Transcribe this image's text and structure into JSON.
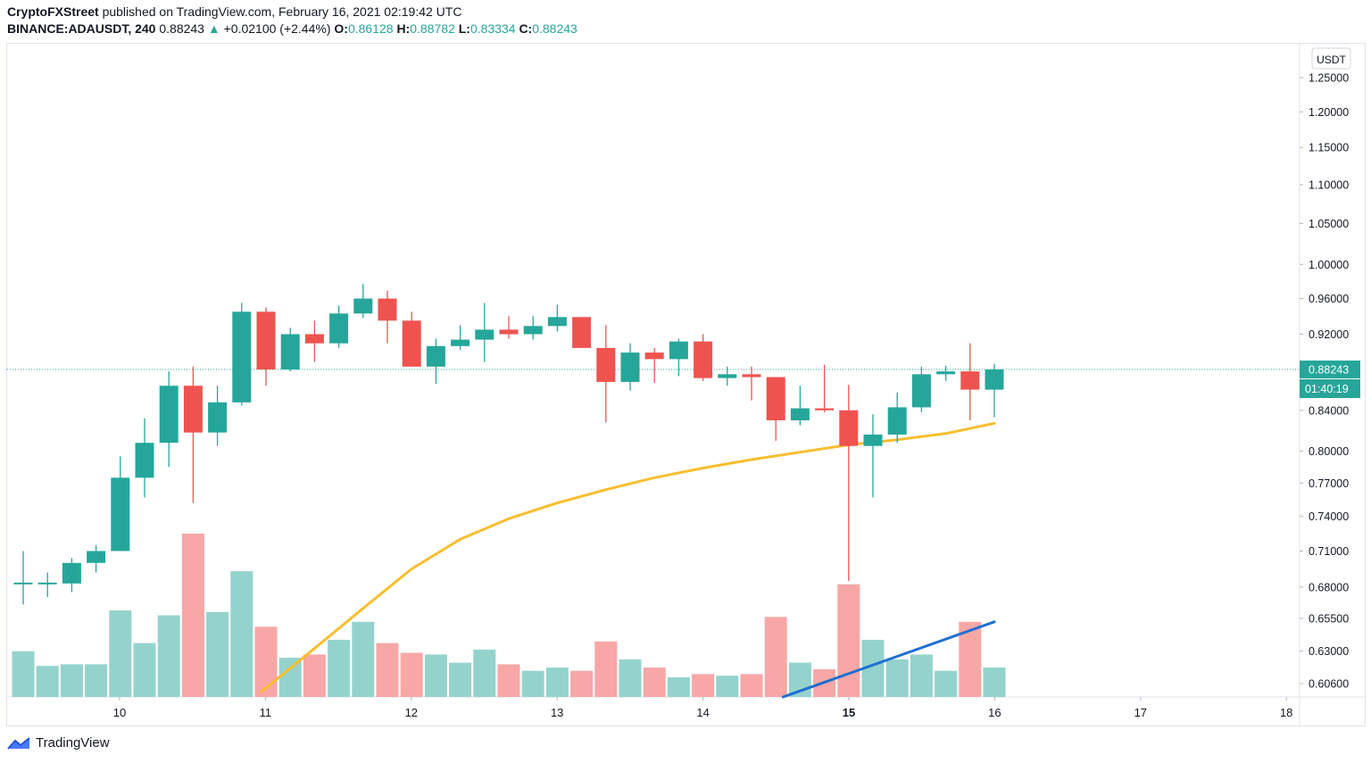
{
  "header": {
    "publisher": "CryptoFXStreet",
    "published_text": "published on TradingView.com, February 16, 2021 02:19:42 UTC",
    "symbol": "BINANCE:ADAUSDT, 240",
    "last": "0.88243",
    "change_arrow": "▲",
    "change": "+0.02100 (+2.44%)",
    "open_label": "O:",
    "open": "0.86128",
    "high_label": "H:",
    "high": "0.88782",
    "low_label": "L:",
    "low": "0.83334",
    "close_label": "C:",
    "close": "0.88243"
  },
  "footer": {
    "brand": "TradingView",
    "logo_icon": "tradingview-logo-icon"
  },
  "colors": {
    "up": "#26a69a",
    "down": "#ef5350",
    "vol_up": "#94d3cc",
    "vol_down": "#f6a7a6",
    "ma": "#f7be2f",
    "trend": "#1f6fd1"
  },
  "chart_data": {
    "type": "candlestick",
    "currency_label": "USDT",
    "y_scale": "log",
    "y_ticks": [
      "1.25000",
      "1.20000",
      "1.15000",
      "1.10000",
      "1.05000",
      "1.00000",
      "0.96000",
      "0.92000",
      "0.84000",
      "0.80000",
      "0.77000",
      "0.74000",
      "0.71000",
      "0.68000",
      "0.65500",
      "0.63000",
      "0.60600"
    ],
    "x_ticks": [
      "10",
      "11",
      "12",
      "13",
      "14",
      "15",
      "16",
      "17",
      "18"
    ],
    "current_price_label": "0.88243",
    "countdown_label": "01:40:19",
    "candles": [
      {
        "o": 0.683,
        "h": 0.71,
        "l": 0.666,
        "c": 0.683
      },
      {
        "o": 0.683,
        "h": 0.692,
        "l": 0.672,
        "c": 0.683
      },
      {
        "o": 0.683,
        "h": 0.704,
        "l": 0.676,
        "c": 0.7
      },
      {
        "o": 0.7,
        "h": 0.715,
        "l": 0.692,
        "c": 0.71
      },
      {
        "o": 0.71,
        "h": 0.795,
        "l": 0.71,
        "c": 0.775
      },
      {
        "o": 0.775,
        "h": 0.832,
        "l": 0.757,
        "c": 0.808
      },
      {
        "o": 0.808,
        "h": 0.88,
        "l": 0.785,
        "c": 0.865
      },
      {
        "o": 0.865,
        "h": 0.885,
        "l": 0.752,
        "c": 0.818
      },
      {
        "o": 0.818,
        "h": 0.865,
        "l": 0.805,
        "c": 0.848
      },
      {
        "o": 0.848,
        "h": 0.955,
        "l": 0.845,
        "c": 0.945
      },
      {
        "o": 0.945,
        "h": 0.95,
        "l": 0.865,
        "c": 0.882
      },
      {
        "o": 0.882,
        "h": 0.927,
        "l": 0.88,
        "c": 0.92
      },
      {
        "o": 0.92,
        "h": 0.935,
        "l": 0.89,
        "c": 0.91
      },
      {
        "o": 0.91,
        "h": 0.952,
        "l": 0.905,
        "c": 0.943
      },
      {
        "o": 0.943,
        "h": 0.977,
        "l": 0.938,
        "c": 0.96
      },
      {
        "o": 0.96,
        "h": 0.969,
        "l": 0.91,
        "c": 0.935
      },
      {
        "o": 0.935,
        "h": 0.945,
        "l": 0.885,
        "c": 0.885
      },
      {
        "o": 0.885,
        "h": 0.915,
        "l": 0.867,
        "c": 0.907
      },
      {
        "o": 0.907,
        "h": 0.93,
        "l": 0.903,
        "c": 0.914
      },
      {
        "o": 0.914,
        "h": 0.955,
        "l": 0.89,
        "c": 0.925
      },
      {
        "o": 0.925,
        "h": 0.94,
        "l": 0.915,
        "c": 0.92
      },
      {
        "o": 0.92,
        "h": 0.94,
        "l": 0.914,
        "c": 0.929
      },
      {
        "o": 0.929,
        "h": 0.953,
        "l": 0.923,
        "c": 0.939
      },
      {
        "o": 0.939,
        "h": 0.939,
        "l": 0.905,
        "c": 0.905
      },
      {
        "o": 0.905,
        "h": 0.93,
        "l": 0.828,
        "c": 0.869
      },
      {
        "o": 0.869,
        "h": 0.91,
        "l": 0.86,
        "c": 0.9
      },
      {
        "o": 0.9,
        "h": 0.905,
        "l": 0.868,
        "c": 0.893
      },
      {
        "o": 0.893,
        "h": 0.915,
        "l": 0.875,
        "c": 0.912
      },
      {
        "o": 0.912,
        "h": 0.92,
        "l": 0.87,
        "c": 0.873
      },
      {
        "o": 0.873,
        "h": 0.885,
        "l": 0.865,
        "c": 0.877
      },
      {
        "o": 0.877,
        "h": 0.885,
        "l": 0.85,
        "c": 0.874
      },
      {
        "o": 0.874,
        "h": 0.874,
        "l": 0.81,
        "c": 0.83
      },
      {
        "o": 0.83,
        "h": 0.865,
        "l": 0.825,
        "c": 0.842
      },
      {
        "o": 0.842,
        "h": 0.887,
        "l": 0.838,
        "c": 0.84
      },
      {
        "o": 0.84,
        "h": 0.866,
        "l": 0.685,
        "c": 0.805
      },
      {
        "o": 0.805,
        "h": 0.836,
        "l": 0.757,
        "c": 0.816
      },
      {
        "o": 0.816,
        "h": 0.858,
        "l": 0.808,
        "c": 0.843
      },
      {
        "o": 0.843,
        "h": 0.885,
        "l": 0.838,
        "c": 0.877
      },
      {
        "o": 0.877,
        "h": 0.886,
        "l": 0.87,
        "c": 0.88
      },
      {
        "o": 0.88,
        "h": 0.91,
        "l": 0.83,
        "c": 0.861
      },
      {
        "o": 0.861,
        "h": 0.888,
        "l": 0.833,
        "c": 0.882
      }
    ],
    "volume_relative": [
      28,
      19,
      20,
      20,
      53,
      33,
      50,
      100,
      52,
      77,
      43,
      24,
      26,
      35,
      46,
      33,
      27,
      26,
      21,
      29,
      20,
      16,
      18,
      16,
      34,
      23,
      18,
      12,
      14,
      13,
      14,
      49,
      21,
      17,
      69,
      35,
      23,
      26,
      16,
      46,
      18
    ],
    "moving_average": [
      {
        "i": 9.8,
        "v": 0.6
      },
      {
        "i": 12,
        "v": 0.632
      },
      {
        "i": 14,
        "v": 0.663
      },
      {
        "i": 16,
        "v": 0.695
      },
      {
        "i": 18,
        "v": 0.72
      },
      {
        "i": 20,
        "v": 0.738
      },
      {
        "i": 22,
        "v": 0.752
      },
      {
        "i": 24,
        "v": 0.764
      },
      {
        "i": 26,
        "v": 0.775
      },
      {
        "i": 28,
        "v": 0.784
      },
      {
        "i": 30,
        "v": 0.792
      },
      {
        "i": 32,
        "v": 0.799
      },
      {
        "i": 34,
        "v": 0.806
      },
      {
        "i": 36,
        "v": 0.811
      },
      {
        "i": 38,
        "v": 0.817
      },
      {
        "i": 40,
        "v": 0.827
      }
    ],
    "volume_trendline": [
      {
        "i": 31.3,
        "v": 0
      },
      {
        "i": 40,
        "v": 46
      }
    ],
    "grid": false,
    "legend": "none"
  }
}
